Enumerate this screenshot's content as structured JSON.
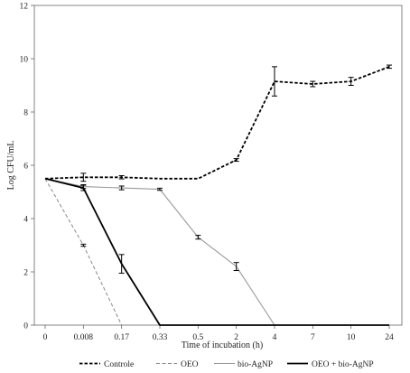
{
  "chart_data": {
    "type": "line",
    "title": "",
    "xlabel": "Time of incubation (h)",
    "ylabel": "Log CFU/mL",
    "categories": [
      "0",
      "0.008",
      "0.17",
      "0.33",
      "0.5",
      "2",
      "4",
      "7",
      "10",
      "24"
    ],
    "ylim": [
      0,
      12
    ],
    "yticks": [
      0,
      2,
      4,
      6,
      8,
      10,
      12
    ],
    "grid": false,
    "legend_position": "bottom",
    "series": [
      {
        "name": "Controle",
        "color": "#000000",
        "style": "dashed-bold",
        "values": [
          5.5,
          5.55,
          5.55,
          5.5,
          5.5,
          6.2,
          9.15,
          9.05,
          9.15,
          9.7
        ],
        "errors": [
          0,
          0.15,
          0.06,
          0,
          0,
          0.05,
          0.55,
          0.1,
          0.15,
          0.06
        ]
      },
      {
        "name": "OEO",
        "color": "#888888",
        "style": "dashed",
        "values": [
          5.5,
          3.0,
          0,
          null,
          null,
          null,
          null,
          null,
          null,
          null
        ],
        "errors": [
          0,
          0.04,
          0,
          null,
          null,
          null,
          null,
          null,
          null,
          null
        ]
      },
      {
        "name": "bio-AgNP",
        "color": "#999999",
        "style": "solid",
        "values": [
          5.5,
          5.2,
          5.15,
          5.1,
          3.3,
          2.2,
          0,
          null,
          null,
          null
        ],
        "errors": [
          0,
          0.07,
          0.07,
          0.04,
          0.07,
          0.15,
          0,
          null,
          null,
          null
        ]
      },
      {
        "name": "OEO + bio-AgNP",
        "color": "#000000",
        "style": "solid-bold",
        "values": [
          5.5,
          5.15,
          2.3,
          0,
          0,
          0,
          0,
          0,
          0,
          0
        ],
        "errors": [
          0,
          0.1,
          0.35,
          0,
          0,
          0,
          0,
          0,
          0,
          0
        ]
      }
    ]
  }
}
